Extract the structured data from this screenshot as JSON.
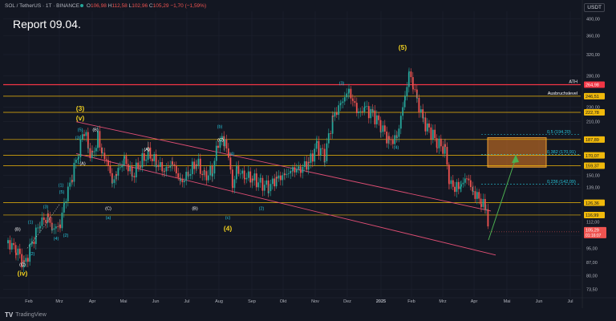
{
  "header": {
    "symbol": "SOL / TetherUS · 1T · BINANCE",
    "o_label": "O",
    "o_value": "106,98",
    "h_label": "H",
    "h_value": "112,58",
    "l_label": "L",
    "l_value": "102,96",
    "c_label": "C",
    "c_value": "105,29",
    "change": "−1,70 (−1,59%)"
  },
  "report_title": "Report 09.04.",
  "currency_label": "USDT",
  "footer": {
    "logo_text": "TV",
    "brand": "TradingView"
  },
  "colors": {
    "background": "#131722",
    "candle_up": "#26a69a",
    "candle_down": "#ef5350",
    "ath_line": "#f23645",
    "level_line": "#f0b90b",
    "channel": "#e04e74",
    "arrow": "#4caf50",
    "wave_major": "#f0d020",
    "wave_minor": "#26c6da",
    "wave_sub": "#ffffff"
  },
  "chart_data": {
    "type": "candlestick",
    "title": "Report 09.04.",
    "scale": "log",
    "ylim": [
      70,
      420
    ],
    "y_ticks": [
      73.5,
      80.0,
      87.0,
      95.0,
      103.0,
      112.0,
      139.0,
      150.0,
      175.0,
      210.0,
      230.0,
      280.0,
      320.0,
      360.0,
      400.0
    ],
    "y_tick_labels": [
      "73,50",
      "80,00",
      "87,00",
      "95,00",
      "103,00",
      "112,00",
      "139,00",
      "150,00",
      "175,00",
      "210,00",
      "230,00",
      "280,00",
      "320,00",
      "360,00",
      "400,00"
    ],
    "x_labels": [
      "Feb",
      "Mrz",
      "Apr",
      "Mai",
      "Jun",
      "Jul",
      "Aug",
      "Sep",
      "Okt",
      "Nov",
      "Dez",
      "2025",
      "Feb",
      "Mrz",
      "Apr",
      "Mai",
      "Jun",
      "Jul"
    ],
    "grid": true,
    "price_path": [
      [
        0,
        98
      ],
      [
        10,
        95
      ],
      [
        20,
        85
      ],
      [
        30,
        98
      ],
      [
        40,
        112
      ],
      [
        50,
        115
      ],
      [
        55,
        107
      ],
      [
        65,
        110
      ],
      [
        70,
        125
      ],
      [
        80,
        150
      ],
      [
        88,
        175
      ],
      [
        95,
        200
      ],
      [
        100,
        178
      ],
      [
        105,
        168
      ],
      [
        112,
        190
      ],
      [
        118,
        172
      ],
      [
        125,
        160
      ],
      [
        130,
        142
      ],
      [
        135,
        152
      ],
      [
        145,
        165
      ],
      [
        155,
        150
      ],
      [
        165,
        163
      ],
      [
        175,
        172
      ],
      [
        185,
        162
      ],
      [
        195,
        155
      ],
      [
        205,
        162
      ],
      [
        215,
        143
      ],
      [
        225,
        152
      ],
      [
        235,
        163
      ],
      [
        245,
        148
      ],
      [
        255,
        155
      ],
      [
        262,
        185
      ],
      [
        270,
        188
      ],
      [
        275,
        168
      ],
      [
        280,
        140
      ],
      [
        285,
        155
      ],
      [
        295,
        150
      ],
      [
        305,
        147
      ],
      [
        315,
        142
      ],
      [
        325,
        140
      ],
      [
        335,
        147
      ],
      [
        345,
        150
      ],
      [
        355,
        155
      ],
      [
        365,
        157
      ],
      [
        375,
        162
      ],
      [
        385,
        180
      ],
      [
        395,
        170
      ],
      [
        405,
        215
      ],
      [
        415,
        235
      ],
      [
        425,
        255
      ],
      [
        430,
        238
      ],
      [
        437,
        222
      ],
      [
        445,
        228
      ],
      [
        455,
        220
      ],
      [
        465,
        205
      ],
      [
        475,
        185
      ],
      [
        485,
        190
      ],
      [
        495,
        245
      ],
      [
        500,
        285
      ],
      [
        505,
        265
      ],
      [
        510,
        240
      ],
      [
        518,
        210
      ],
      [
        525,
        200
      ],
      [
        535,
        185
      ],
      [
        545,
        175
      ],
      [
        550,
        145
      ],
      [
        557,
        138
      ],
      [
        565,
        142
      ],
      [
        572,
        148
      ],
      [
        580,
        135
      ],
      [
        590,
        128
      ],
      [
        596,
        120
      ],
      [
        600,
        105
      ]
    ],
    "price_levels": [
      {
        "label": "ATH",
        "value": "264,98",
        "y": 264.98
      },
      {
        "label": "Ausbruchslevel",
        "value": "246,51",
        "y": 246.51
      },
      {
        "label": "",
        "value": "222,78",
        "y": 222.78
      },
      {
        "label": "",
        "value": "187,89",
        "y": 187.89
      },
      {
        "label": "",
        "value": "170,07",
        "y": 170.07
      },
      {
        "label": "",
        "value": "159,37",
        "y": 159.37
      },
      {
        "label": "",
        "value": "126,36",
        "y": 126.36
      },
      {
        "label": "",
        "value": "116,99",
        "y": 116.99
      }
    ],
    "current_price": {
      "value": "105,29",
      "countdown": "01:16:07",
      "y": 105.29
    },
    "fib_labels": [
      {
        "text": "0,5 (194,20)",
        "y": 194.2
      },
      {
        "text": "0,382 (170,91)",
        "y": 170.91
      },
      {
        "text": "0,236 (142,09)",
        "y": 142.09
      }
    ],
    "target_zone": {
      "y_top": 190,
      "y_bottom": 158
    },
    "wave_labels": [
      {
        "text": "(5)",
        "x": 498,
        "y": 330,
        "kind": "major"
      },
      {
        "text": "(3)",
        "x": 96,
        "y": 225,
        "kind": "major"
      },
      {
        "text": "(v)",
        "x": 96,
        "y": 212,
        "kind": "major"
      },
      {
        "text": "(4)",
        "x": 280,
        "y": 106,
        "kind": "major"
      },
      {
        "text": "(iv)",
        "x": 24,
        "y": 80,
        "kind": "major"
      },
      {
        "text": "(b)",
        "x": 270,
        "y": 202,
        "kind": "minor"
      },
      {
        "text": "(c)",
        "x": 280,
        "y": 114,
        "kind": "minor"
      },
      {
        "text": "(a)",
        "x": 131,
        "y": 114,
        "kind": "minor"
      },
      {
        "text": "(3)",
        "x": 422,
        "y": 265,
        "kind": "minor"
      },
      {
        "text": "(4)",
        "x": 490,
        "y": 177,
        "kind": "minor"
      },
      {
        "text": "(5)",
        "x": 96,
        "y": 198,
        "kind": "minor"
      },
      {
        "text": "(3)",
        "x": 93,
        "y": 188,
        "kind": "minor"
      },
      {
        "text": "(5)",
        "x": 73,
        "y": 134,
        "kind": "minor"
      },
      {
        "text": "(1)",
        "x": 72,
        "y": 140,
        "kind": "minor"
      },
      {
        "text": "(3)",
        "x": 53,
        "y": 122,
        "kind": "minor"
      },
      {
        "text": "(4)",
        "x": 66,
        "y": 100,
        "kind": "minor"
      },
      {
        "text": "(2)",
        "x": 78,
        "y": 102,
        "kind": "minor"
      },
      {
        "text": "(1)",
        "x": 34,
        "y": 111,
        "kind": "minor"
      },
      {
        "text": "(2)",
        "x": 36,
        "y": 91,
        "kind": "minor"
      },
      {
        "text": "(4)",
        "x": 285,
        "y": 170,
        "kind": "minor"
      },
      {
        "text": "(2)",
        "x": 322,
        "y": 121,
        "kind": "minor"
      },
      {
        "text": "(B)",
        "x": 115,
        "y": 198,
        "kind": "sub"
      },
      {
        "text": "(A)",
        "x": 99,
        "y": 160,
        "kind": "sub"
      },
      {
        "text": "(A)",
        "x": 179,
        "y": 175,
        "kind": "sub"
      },
      {
        "text": "(C)",
        "x": 131,
        "y": 121,
        "kind": "sub"
      },
      {
        "text": "(B)",
        "x": 239,
        "y": 121,
        "kind": "sub"
      },
      {
        "text": "(C)",
        "x": 271,
        "y": 186,
        "kind": "sub"
      },
      {
        "text": "(B)",
        "x": 18,
        "y": 106,
        "kind": "sub"
      },
      {
        "text": "(C)",
        "x": 24,
        "y": 85,
        "kind": "sub"
      }
    ]
  }
}
